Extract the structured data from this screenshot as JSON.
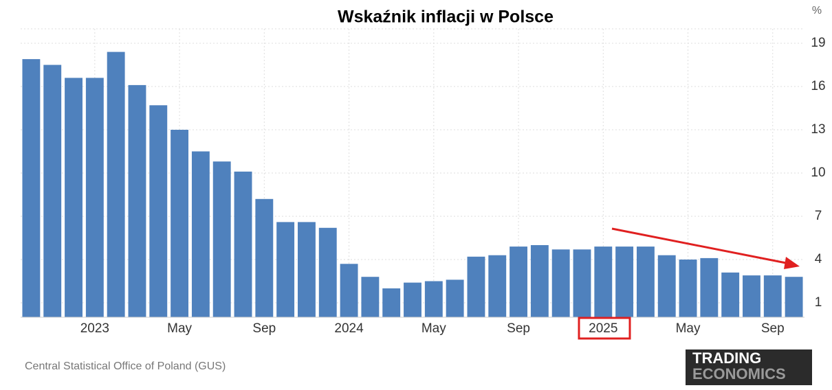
{
  "chart_data": {
    "type": "bar",
    "title": "Wskaźnik inflacji w Polsce",
    "y_unit": "%",
    "categories": [
      null,
      null,
      null,
      "2023",
      null,
      null,
      null,
      "May",
      null,
      null,
      null,
      "Sep",
      null,
      null,
      null,
      "2024",
      null,
      null,
      null,
      "May",
      null,
      null,
      null,
      "Sep",
      null,
      null,
      null,
      "2025",
      null,
      null,
      null,
      "May",
      null,
      null,
      null,
      "Sep",
      null
    ],
    "values": [
      17.9,
      17.5,
      16.6,
      16.6,
      18.4,
      16.1,
      14.7,
      13.0,
      11.5,
      10.8,
      10.1,
      8.2,
      6.6,
      6.6,
      6.2,
      3.7,
      2.8,
      2.0,
      2.4,
      2.5,
      2.6,
      4.2,
      4.3,
      4.9,
      5.0,
      4.7,
      4.7,
      4.9,
      4.9,
      4.9,
      4.3,
      4.0,
      4.1,
      3.1,
      2.9,
      2.9,
      2.8
    ],
    "color": "#4f81bd",
    "ylim": [
      0,
      20
    ],
    "yticks": [
      1,
      4,
      7,
      10,
      13,
      16,
      19
    ],
    "grid": true,
    "source": "Central Statistical Office of Poland (GUS)",
    "logo": [
      "TRADING",
      "ECONOMICS"
    ]
  }
}
